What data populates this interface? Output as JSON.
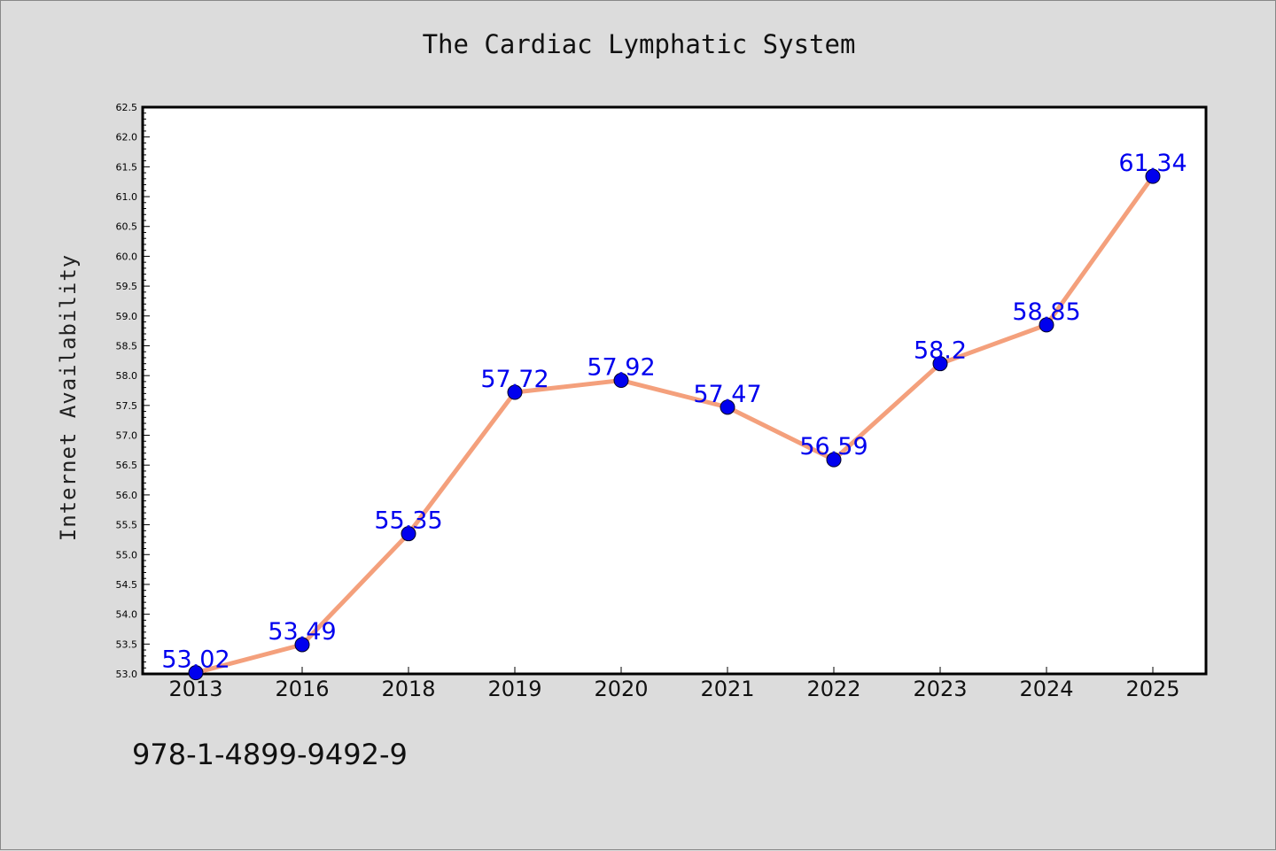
{
  "footer": {
    "code": "978-1-4899-9492-9"
  },
  "colors": {
    "line": "#f4a07c",
    "marker": "#0000ee",
    "label": "#0000ee",
    "background": "#dcdcdc",
    "plot_bg": "#ffffff"
  },
  "chart_data": {
    "type": "line",
    "title": "The Cardiac Lymphatic System",
    "xlabel": "",
    "ylabel": "Internet Availability",
    "categories": [
      "2013",
      "2016",
      "2018",
      "2019",
      "2020",
      "2021",
      "2022",
      "2023",
      "2024",
      "2025"
    ],
    "series": [
      {
        "values": [
          53.02,
          53.49,
          55.35,
          57.72,
          57.92,
          57.47,
          56.59,
          58.2,
          58.85,
          61.34
        ]
      }
    ],
    "data_labels": [
      "53.02",
      "53.49",
      "55.35",
      "57.72",
      "57.92",
      "57.47",
      "56.59",
      "58.2",
      "58.85",
      "61.34"
    ],
    "ylim": [
      53.0,
      62.5
    ],
    "yticks": [
      "53.0",
      "53.5",
      "54.0",
      "54.5",
      "55.0",
      "55.5",
      "56.0",
      "56.5",
      "57.0",
      "57.5",
      "58.0",
      "58.5",
      "59.0",
      "59.5",
      "60.0",
      "60.5",
      "61.0",
      "61.5",
      "62.0",
      "62.5"
    ],
    "grid": false,
    "legend": "none"
  }
}
